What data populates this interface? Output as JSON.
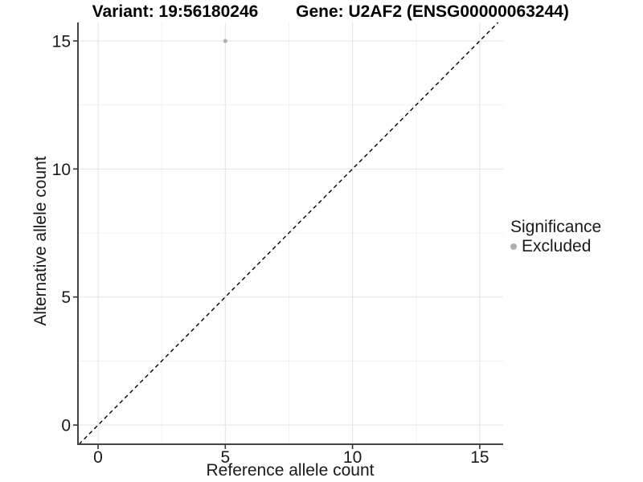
{
  "header": {
    "title_variant": "Variant: 19:56180246",
    "title_gene": "Gene: U2AF2 (ENSG00000063244)"
  },
  "chart_data": {
    "type": "scatter",
    "title": "Variant: 19:56180246   Gene: U2AF2 (ENSG00000063244)",
    "xlabel": "Reference allele count",
    "ylabel": "Alternative allele count",
    "x_ticks": [
      0,
      5,
      10,
      15
    ],
    "y_ticks": [
      0,
      5,
      10,
      15
    ],
    "xlim": [
      -0.79,
      15.92
    ],
    "ylim": [
      -0.75,
      15.72
    ],
    "grid": "major+minor",
    "points": [
      {
        "x": 5,
        "y": 15,
        "significance": "Excluded"
      }
    ],
    "identity_line": {
      "slope": 1,
      "intercept": 0,
      "style": "dashed",
      "color": "#000000"
    },
    "legend": {
      "position": "right",
      "title": "Significance",
      "entries": [
        {
          "label": "Excluded",
          "color": "#b0b0b0",
          "marker": "circle"
        }
      ]
    },
    "colors": {
      "point": "#b0b0b0",
      "grid_major": "#e2e2e2",
      "grid_minor": "#f0f0f0",
      "axis_line": "#434343",
      "tick_mark": "#333333",
      "tick_text": "#1a1a1a"
    }
  }
}
